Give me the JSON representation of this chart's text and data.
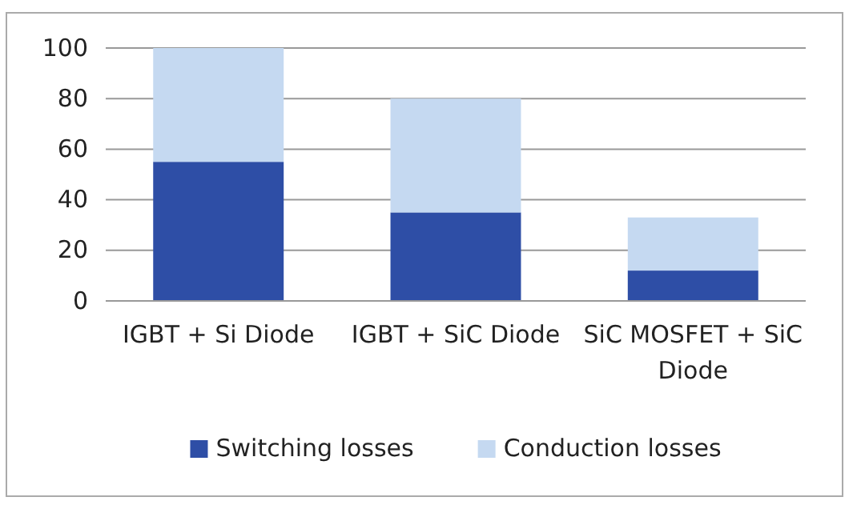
{
  "chart_data": {
    "type": "bar",
    "stacked": true,
    "categories": [
      "IGBT + Si Diode",
      "IGBT + SiC Diode",
      "SiC MOSFET + SiC Diode"
    ],
    "series": [
      {
        "name": "Switching losses",
        "color": "#2e4ea6",
        "values": [
          55,
          35,
          12
        ]
      },
      {
        "name": "Conduction losses",
        "color": "#c5d9f1",
        "values": [
          45,
          45,
          21
        ]
      }
    ],
    "ylim": [
      0,
      100
    ],
    "yticks": [
      0,
      20,
      40,
      60,
      80,
      100
    ],
    "grid": "y",
    "legend": "bottom"
  }
}
